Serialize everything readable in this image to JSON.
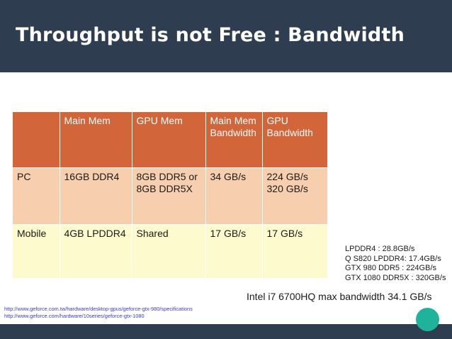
{
  "slide": {
    "title": "Throughput is not Free : Bandwidth",
    "colors": {
      "title_bar": "#2e3e50",
      "header_row": "#d2663a",
      "pc_row": "#f8cfae",
      "mobile_row": "#fdfacd",
      "accent_circle": "#1fb39b",
      "link": "#3a3ad0"
    }
  },
  "table": {
    "headers": [
      "",
      "Main Mem",
      "GPU Mem",
      "Main Mem Bandwidth",
      "GPU Bandwidth"
    ],
    "rows": [
      {
        "cells": [
          "PC",
          "16GB DDR4",
          "8GB DDR5 or 8GB DDR5X",
          "34 GB/s",
          "224 GB/s 320 GB/s"
        ]
      },
      {
        "cells": [
          "Mobile",
          "4GB LPDDR4",
          "Shared",
          "17 GB/s",
          "17 GB/s"
        ]
      }
    ]
  },
  "notes": [
    "LPDDR4 : 28.8GB/s",
    "Q S820 LPDDR4: 17.4GB/s",
    "GTX 980 DDR5 : 224GB/s",
    "GTX 1080 DDR5X : 320GB/s"
  ],
  "intel_note": "Intel i7 6700HQ max bandwidth 34.1 GB/s",
  "links": [
    "http://www.geforce.com.tw/hardware/desktop-gpus/geforce-gtx-980/specifications",
    "http://www.geforce.com/hardware/10series/geforce-gtx-1080"
  ]
}
